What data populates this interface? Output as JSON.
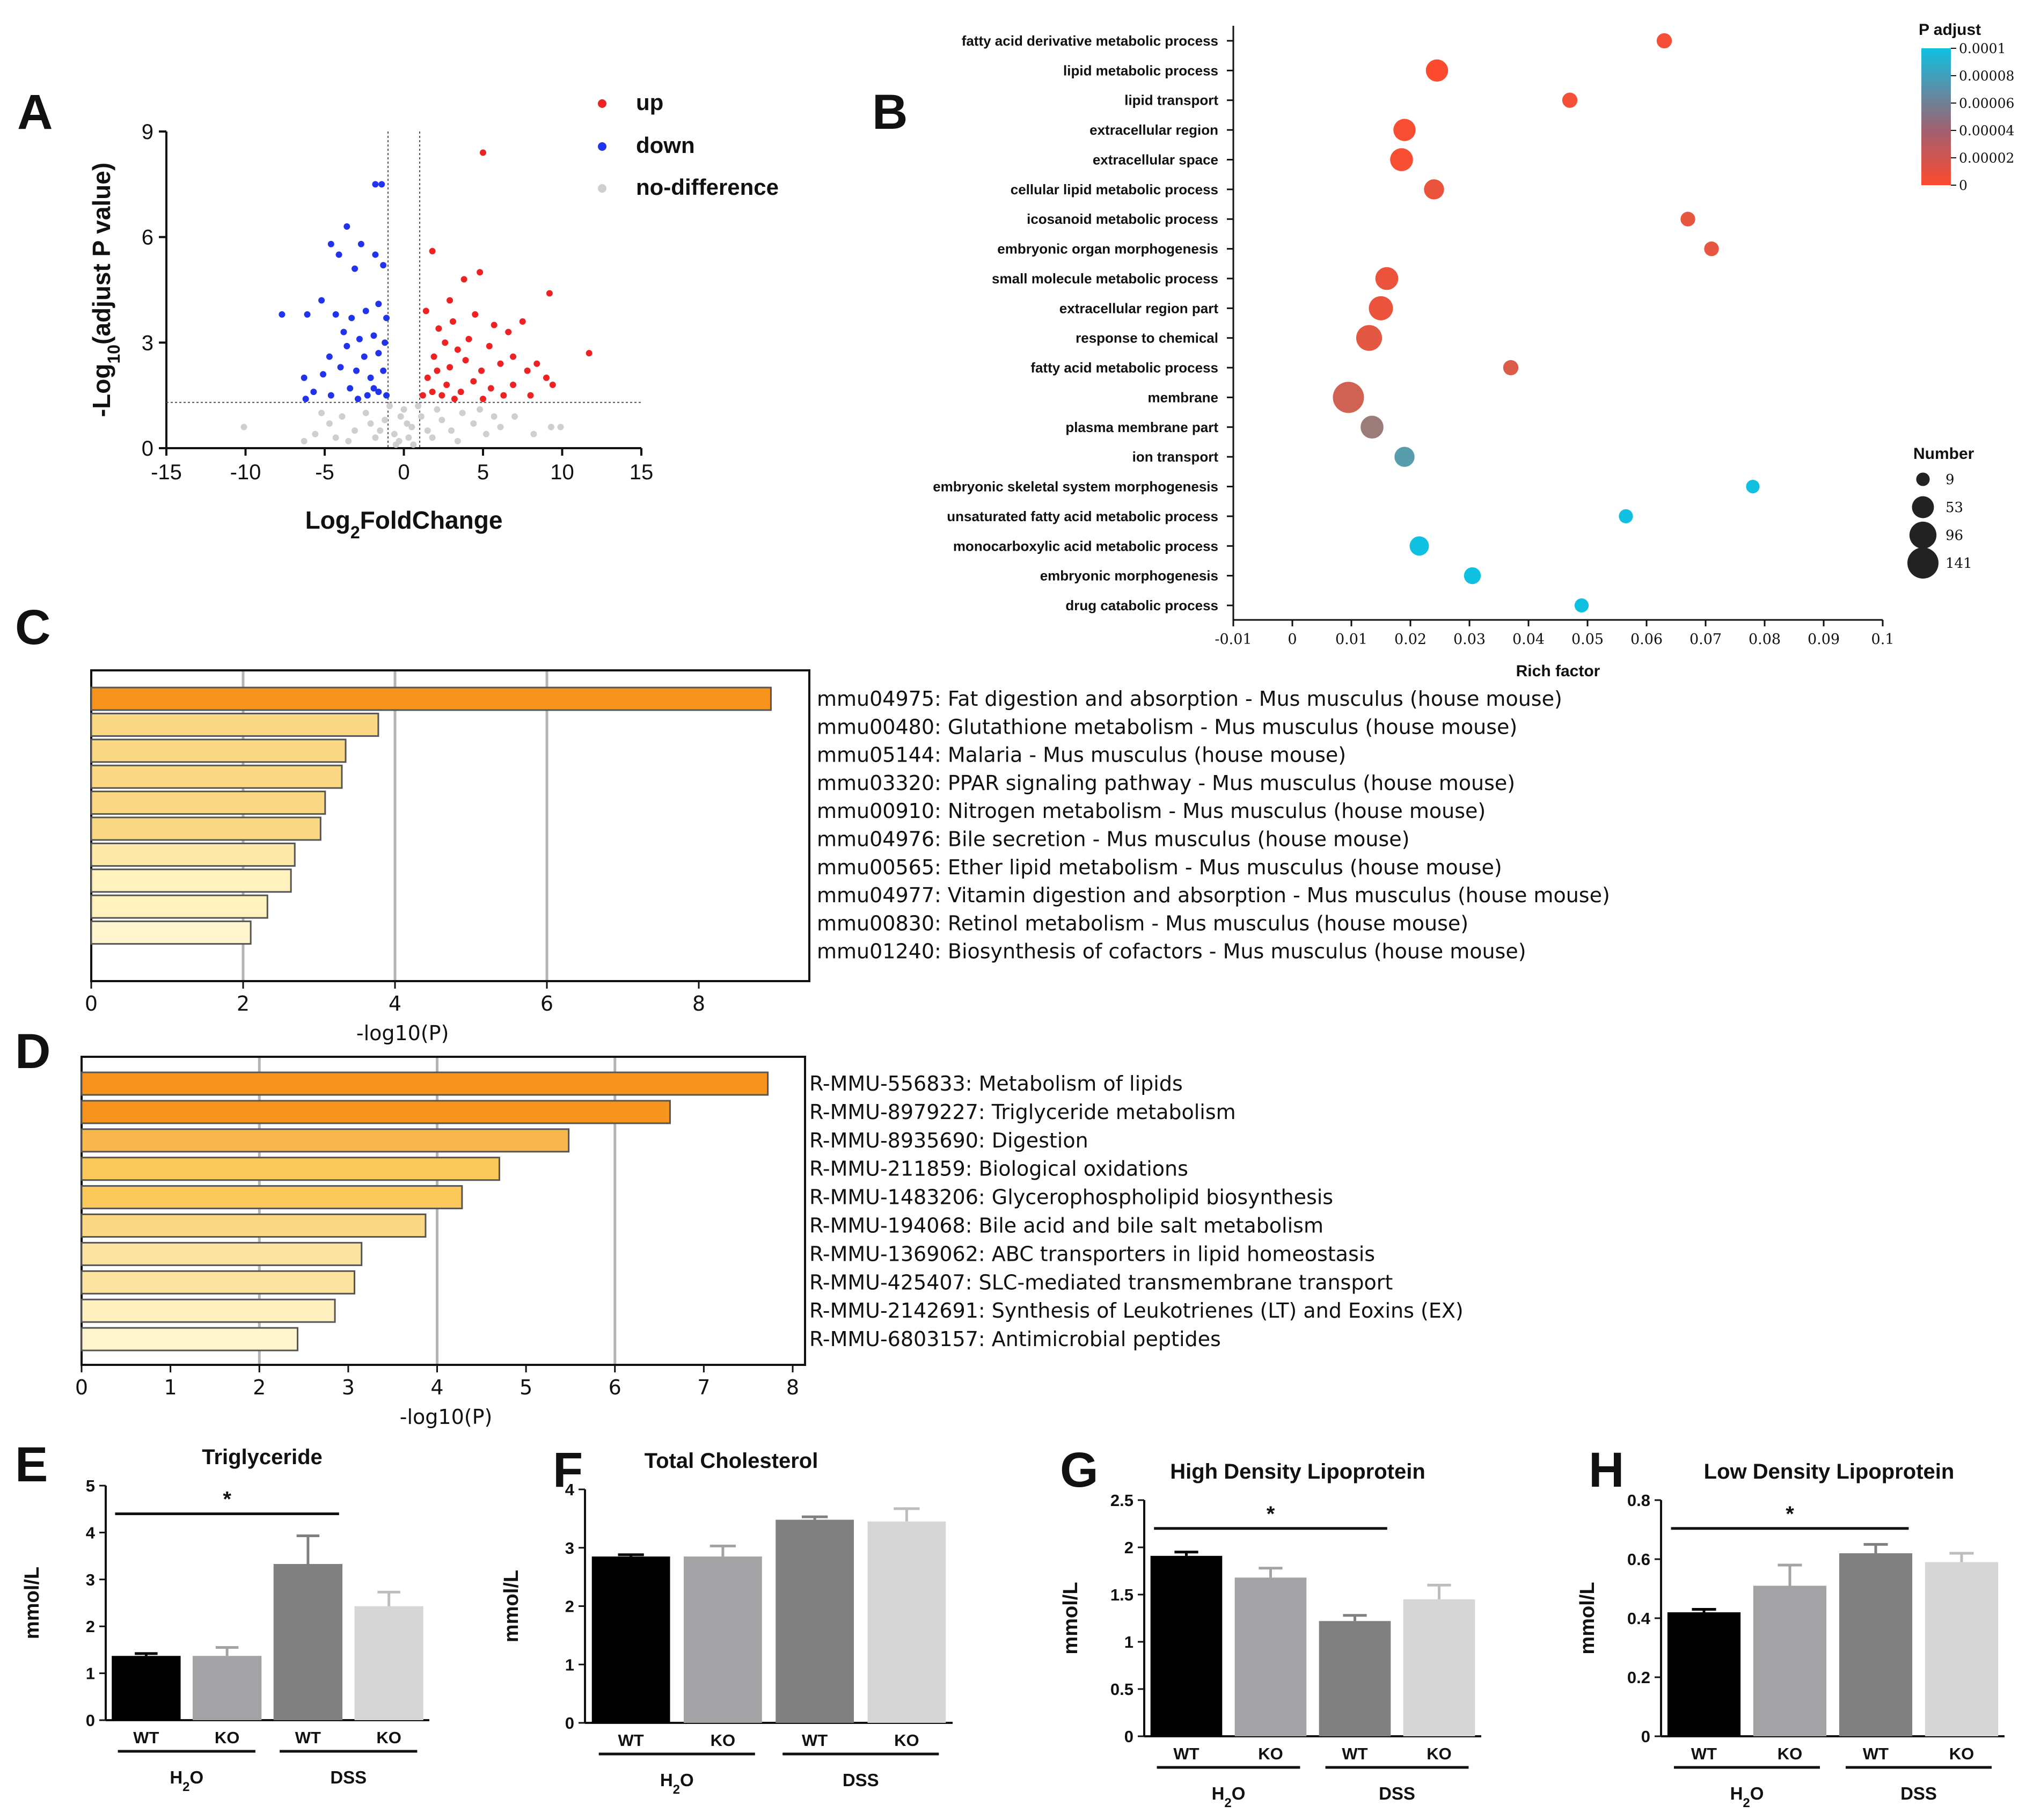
{
  "colors": {
    "up": "#ee2222",
    "down": "#2233ee",
    "nodiff": "#cfcfcf",
    "orange_dark": "#f7941d",
    "bar_outline": "#555555",
    "padj_low": "#ff4a2e",
    "padj_high": "#10c0e0"
  },
  "panels": {
    "A": "A",
    "B": "B",
    "C": "C",
    "D": "D",
    "E": "E",
    "F": "F",
    "G": "G",
    "H": "H"
  },
  "chart_data": [
    {
      "id": "A",
      "type": "scatter",
      "title": "",
      "xlabel": "Log2FoldChange",
      "ylabel": "-Log10(adjust P value)",
      "xlim": [
        -15,
        15
      ],
      "ylim": [
        0,
        9
      ],
      "xticks": [
        -15,
        -10,
        -5,
        0,
        5,
        10,
        15
      ],
      "yticks": [
        0,
        3,
        6,
        9
      ],
      "thresholds": {
        "x": [
          -1,
          1
        ],
        "y": 1.3
      },
      "legend": [
        {
          "key": "up",
          "label": "up"
        },
        {
          "key": "down",
          "label": "down"
        },
        {
          "key": "nodiff",
          "label": "no-difference"
        }
      ],
      "up": [
        [
          5,
          8.4
        ],
        [
          9.2,
          4.4
        ],
        [
          11.7,
          2.7
        ],
        [
          4.8,
          5.0
        ],
        [
          3.8,
          4.8
        ],
        [
          1.8,
          5.6
        ],
        [
          2.9,
          4.2
        ],
        [
          7.5,
          3.6
        ],
        [
          6.6,
          3.3
        ],
        [
          5.7,
          3.5
        ],
        [
          4.5,
          3.8
        ],
        [
          3.1,
          3.6
        ],
        [
          2.2,
          3.4
        ],
        [
          8.4,
          2.4
        ],
        [
          6.9,
          2.6
        ],
        [
          5.4,
          2.9
        ],
        [
          4.1,
          3.1
        ],
        [
          3.4,
          2.8
        ],
        [
          2.6,
          3.0
        ],
        [
          1.9,
          2.6
        ],
        [
          1.4,
          3.9
        ],
        [
          7.8,
          2.2
        ],
        [
          6.1,
          2.4
        ],
        [
          4.9,
          2.2
        ],
        [
          3.9,
          2.5
        ],
        [
          2.9,
          2.3
        ],
        [
          2.1,
          2.2
        ],
        [
          1.5,
          2.0
        ],
        [
          9.0,
          2.0
        ],
        [
          9.4,
          1.8
        ],
        [
          6.9,
          1.8
        ],
        [
          5.5,
          1.7
        ],
        [
          4.4,
          1.9
        ],
        [
          3.6,
          1.6
        ],
        [
          2.7,
          1.8
        ],
        [
          1.8,
          1.6
        ],
        [
          1.2,
          1.5
        ],
        [
          8.0,
          1.5
        ],
        [
          6.3,
          1.5
        ],
        [
          5.0,
          1.4
        ],
        [
          3.2,
          1.4
        ],
        [
          2.4,
          1.5
        ]
      ],
      "down": [
        [
          -1.8,
          7.5
        ],
        [
          -1.4,
          7.5
        ],
        [
          -4.6,
          5.8
        ],
        [
          -3.6,
          6.3
        ],
        [
          -2.7,
          5.8
        ],
        [
          -1.8,
          5.5
        ],
        [
          -1.3,
          5.2
        ],
        [
          -4.1,
          5.5
        ],
        [
          -3.1,
          5.1
        ],
        [
          -7.7,
          3.8
        ],
        [
          -6.1,
          3.8
        ],
        [
          -5.2,
          4.2
        ],
        [
          -4.3,
          3.8
        ],
        [
          -3.3,
          3.7
        ],
        [
          -2.4,
          3.9
        ],
        [
          -1.6,
          4.1
        ],
        [
          -1.1,
          3.7
        ],
        [
          -3.8,
          3.3
        ],
        [
          -2.8,
          3.1
        ],
        [
          -1.9,
          3.2
        ],
        [
          -1.2,
          3.0
        ],
        [
          -4.7,
          2.6
        ],
        [
          -3.6,
          2.9
        ],
        [
          -2.5,
          2.6
        ],
        [
          -1.6,
          2.7
        ],
        [
          -6.3,
          2.0
        ],
        [
          -5.1,
          2.1
        ],
        [
          -4.0,
          2.3
        ],
        [
          -3.0,
          2.2
        ],
        [
          -2.1,
          2.0
        ],
        [
          -1.3,
          2.2
        ],
        [
          -5.7,
          1.6
        ],
        [
          -4.6,
          1.5
        ],
        [
          -3.4,
          1.7
        ],
        [
          -2.3,
          1.5
        ],
        [
          -1.6,
          1.6
        ],
        [
          -1.1,
          1.5
        ],
        [
          -6.2,
          1.4
        ],
        [
          -2.9,
          1.4
        ],
        [
          -1.9,
          1.7
        ]
      ],
      "nodiff": [
        [
          -10.1,
          0.6
        ],
        [
          -6.3,
          0.2
        ],
        [
          -5.6,
          0.4
        ],
        [
          -4.7,
          0.7
        ],
        [
          -3.9,
          0.9
        ],
        [
          -3.1,
          0.5
        ],
        [
          -2.4,
          1.0
        ],
        [
          -1.8,
          0.3
        ],
        [
          -1.2,
          0.8
        ],
        [
          -0.6,
          0.4
        ],
        [
          0.0,
          1.1
        ],
        [
          0.5,
          0.6
        ],
        [
          1.1,
          0.9
        ],
        [
          1.8,
          0.3
        ],
        [
          2.4,
          0.8
        ],
        [
          3.0,
          0.5
        ],
        [
          3.7,
          1.0
        ],
        [
          4.4,
          0.7
        ],
        [
          5.2,
          0.4
        ],
        [
          6.1,
          0.6
        ],
        [
          7.0,
          0.9
        ],
        [
          8.2,
          0.4
        ],
        [
          9.3,
          0.6
        ],
        [
          9.9,
          0.6
        ],
        [
          -0.3,
          0.2
        ],
        [
          0.3,
          0.3
        ],
        [
          -0.9,
          1.2
        ],
        [
          0.9,
          1.2
        ],
        [
          -1.5,
          0.5
        ],
        [
          1.5,
          0.5
        ],
        [
          -2.1,
          0.7
        ],
        [
          2.1,
          1.1
        ],
        [
          -3.5,
          0.2
        ],
        [
          3.4,
          0.2
        ],
        [
          -0.2,
          0.9
        ],
        [
          0.2,
          0.7
        ],
        [
          -4.3,
          0.3
        ],
        [
          4.8,
          1.1
        ],
        [
          -5.2,
          1.0
        ],
        [
          5.7,
          0.9
        ],
        [
          -0.5,
          0.1
        ],
        [
          0.6,
          0.1
        ]
      ]
    },
    {
      "id": "B",
      "type": "scatter",
      "title": "",
      "xlabel": "Rich factor",
      "xlim": [
        -0.01,
        0.1
      ],
      "xticks": [
        -0.01,
        0,
        0.01,
        0.02,
        0.03,
        0.04,
        0.05,
        0.06,
        0.07,
        0.08,
        0.09,
        0.1
      ],
      "color_legend": {
        "title": "P adjust",
        "ticks": [
          "0.0001",
          "0.00008",
          "0.00006",
          "0.00004",
          "0.00002",
          "0"
        ]
      },
      "size_legend": {
        "title": "Number",
        "values": [
          9,
          53,
          96,
          141
        ]
      },
      "terms": [
        {
          "label": "fatty acid derivative metabolic process",
          "x": 0.063,
          "count": 15,
          "padj": 5e-06
        },
        {
          "label": "lipid metabolic process",
          "x": 0.0245,
          "count": 55,
          "padj": 1e-06
        },
        {
          "label": "lipid transport",
          "x": 0.047,
          "count": 15,
          "padj": 5e-06
        },
        {
          "label": "extracellular region",
          "x": 0.019,
          "count": 55,
          "padj": 3e-06
        },
        {
          "label": "extracellular space",
          "x": 0.0185,
          "count": 60,
          "padj": 3e-06
        },
        {
          "label": "cellular lipid metabolic process",
          "x": 0.024,
          "count": 40,
          "padj": 8e-06
        },
        {
          "label": "icosanoid metabolic process",
          "x": 0.067,
          "count": 13,
          "padj": 1e-05
        },
        {
          "label": "embryonic organ morphogenesis",
          "x": 0.071,
          "count": 13,
          "padj": 1e-05
        },
        {
          "label": "small molecule metabolic process",
          "x": 0.016,
          "count": 60,
          "padj": 8e-06
        },
        {
          "label": "extracellular region part",
          "x": 0.015,
          "count": 70,
          "padj": 8e-06
        },
        {
          "label": "response to chemical",
          "x": 0.013,
          "count": 85,
          "padj": 1.2e-05
        },
        {
          "label": "fatty acid metabolic process",
          "x": 0.037,
          "count": 15,
          "padj": 1.5e-05
        },
        {
          "label": "membrane",
          "x": 0.0095,
          "count": 141,
          "padj": 2e-05
        },
        {
          "label": "plasma membrane part",
          "x": 0.0135,
          "count": 60,
          "padj": 4.2e-05
        },
        {
          "label": "ion transport",
          "x": 0.019,
          "count": 40,
          "padj": 7e-05
        },
        {
          "label": "embryonic skeletal system morphogenesis",
          "x": 0.078,
          "count": 9,
          "padj": 0.0001
        },
        {
          "label": "unsaturated fatty acid metabolic process",
          "x": 0.0565,
          "count": 11,
          "padj": 0.0001
        },
        {
          "label": "monocarboxylic acid metabolic process",
          "x": 0.0215,
          "count": 35,
          "padj": 0.0001
        },
        {
          "label": "embryonic morphogenesis",
          "x": 0.0305,
          "count": 22,
          "padj": 0.0001
        },
        {
          "label": "drug catabolic process",
          "x": 0.049,
          "count": 11,
          "padj": 0.0001
        }
      ]
    },
    {
      "id": "C",
      "type": "bar",
      "orientation": "horizontal",
      "xlabel": "-log10(P)",
      "xlim": [
        0,
        9.4
      ],
      "xticks": [
        0,
        2,
        4,
        6,
        8
      ],
      "gridlines": [
        2,
        4,
        6
      ],
      "categories": [
        "mmu04975: Fat digestion and absorption - Mus musculus (house mouse)",
        "mmu00480: Glutathione metabolism - Mus musculus (house mouse)",
        "mmu05144: Malaria - Mus musculus (house mouse)",
        "mmu03320: PPAR signaling pathway - Mus musculus (house mouse)",
        "mmu00910: Nitrogen metabolism - Mus musculus (house mouse)",
        "mmu04976: Bile secretion - Mus musculus (house mouse)",
        "mmu00565: Ether lipid metabolism - Mus musculus (house mouse)",
        "mmu04977: Vitamin digestion and absorption - Mus musculus (house mouse)",
        "mmu00830: Retinol metabolism - Mus musculus (house mouse)",
        "mmu01240: Biosynthesis of cofactors - Mus musculus (house mouse)"
      ],
      "values": [
        8.95,
        3.78,
        3.35,
        3.3,
        3.08,
        3.02,
        2.68,
        2.63,
        2.32,
        2.1
      ],
      "fills": [
        "#f7941d",
        "#fbd884",
        "#fbd884",
        "#fbd884",
        "#fbd884",
        "#fbd884",
        "#fde9a8",
        "#fff2bf",
        "#fff2bf",
        "#fff6cf"
      ]
    },
    {
      "id": "D",
      "type": "bar",
      "orientation": "horizontal",
      "xlabel": "-log10(P)",
      "xlim": [
        0,
        8
      ],
      "xticks": [
        0,
        1,
        2,
        3,
        4,
        5,
        6,
        7,
        8
      ],
      "gridlines": [
        2,
        4,
        6
      ],
      "categories": [
        "R-MMU-556833: Metabolism of lipids",
        "R-MMU-8979227: Triglyceride metabolism",
        "R-MMU-8935690: Digestion",
        "R-MMU-211859: Biological oxidations",
        "R-MMU-1483206: Glycerophospholipid biosynthesis",
        "R-MMU-194068: Bile acid and bile salt metabolism",
        "R-MMU-1369062: ABC transporters in lipid homeostasis",
        "R-MMU-425407: SLC-mediated transmembrane transport",
        "R-MMU-2142691: Synthesis of Leukotrienes (LT) and Eoxins (EX)",
        "R-MMU-6803157: Antimicrobial peptides"
      ],
      "values": [
        7.72,
        6.62,
        5.48,
        4.7,
        4.28,
        3.87,
        3.15,
        3.07,
        2.85,
        2.43
      ],
      "fills": [
        "#f7941d",
        "#f7941d",
        "#f9b64c",
        "#fbc85c",
        "#fbc85c",
        "#fbd884",
        "#fde3a0",
        "#fde3a0",
        "#fff0c0",
        "#fff6cf"
      ]
    },
    {
      "id": "E",
      "type": "bar",
      "title": "Triglyceride",
      "ylabel": "mmol/L",
      "ylim": [
        0,
        5
      ],
      "yticks": [
        0,
        1,
        2,
        3,
        4,
        5
      ],
      "categories": [
        "WT",
        "KO",
        "WT",
        "KO"
      ],
      "groups": [
        "H2O",
        "DSS"
      ],
      "values": [
        1.37,
        1.37,
        3.33,
        2.43
      ],
      "errors": [
        0.05,
        0.18,
        0.6,
        0.3
      ],
      "significance": {
        "from": 0,
        "to": 2,
        "label": "*"
      }
    },
    {
      "id": "F",
      "type": "bar",
      "title": "Total Cholesterol",
      "ylabel": "mmol/L",
      "ylim": [
        0,
        4
      ],
      "yticks": [
        0,
        1,
        2,
        3,
        4
      ],
      "categories": [
        "WT",
        "KO",
        "WT",
        "KO"
      ],
      "groups": [
        "H2O",
        "DSS"
      ],
      "values": [
        2.85,
        2.85,
        3.48,
        3.45
      ],
      "errors": [
        0.03,
        0.18,
        0.05,
        0.22
      ]
    },
    {
      "id": "G",
      "type": "bar",
      "title": "High Density Lipoprotein",
      "ylabel": "mmol/L",
      "ylim": [
        0,
        2.5
      ],
      "yticks": [
        0,
        0.5,
        1.0,
        1.5,
        2.0,
        2.5
      ],
      "categories": [
        "WT",
        "KO",
        "WT",
        "KO"
      ],
      "groups": [
        "H2O",
        "DSS"
      ],
      "values": [
        1.91,
        1.68,
        1.22,
        1.45
      ],
      "errors": [
        0.04,
        0.1,
        0.06,
        0.15
      ],
      "significance": {
        "from": 0,
        "to": 2,
        "label": "*"
      }
    },
    {
      "id": "H",
      "type": "bar",
      "title": "Low Density Lipoprotein",
      "ylabel": "mmol/L",
      "ylim": [
        0,
        0.8
      ],
      "yticks": [
        0,
        0.2,
        0.4,
        0.6,
        0.8
      ],
      "categories": [
        "WT",
        "KO",
        "WT",
        "KO"
      ],
      "groups": [
        "H2O",
        "DSS"
      ],
      "values": [
        0.42,
        0.51,
        0.62,
        0.59
      ],
      "errors": [
        0.01,
        0.07,
        0.03,
        0.03
      ],
      "significance": {
        "from": 0,
        "to": 2,
        "label": "*"
      }
    }
  ]
}
